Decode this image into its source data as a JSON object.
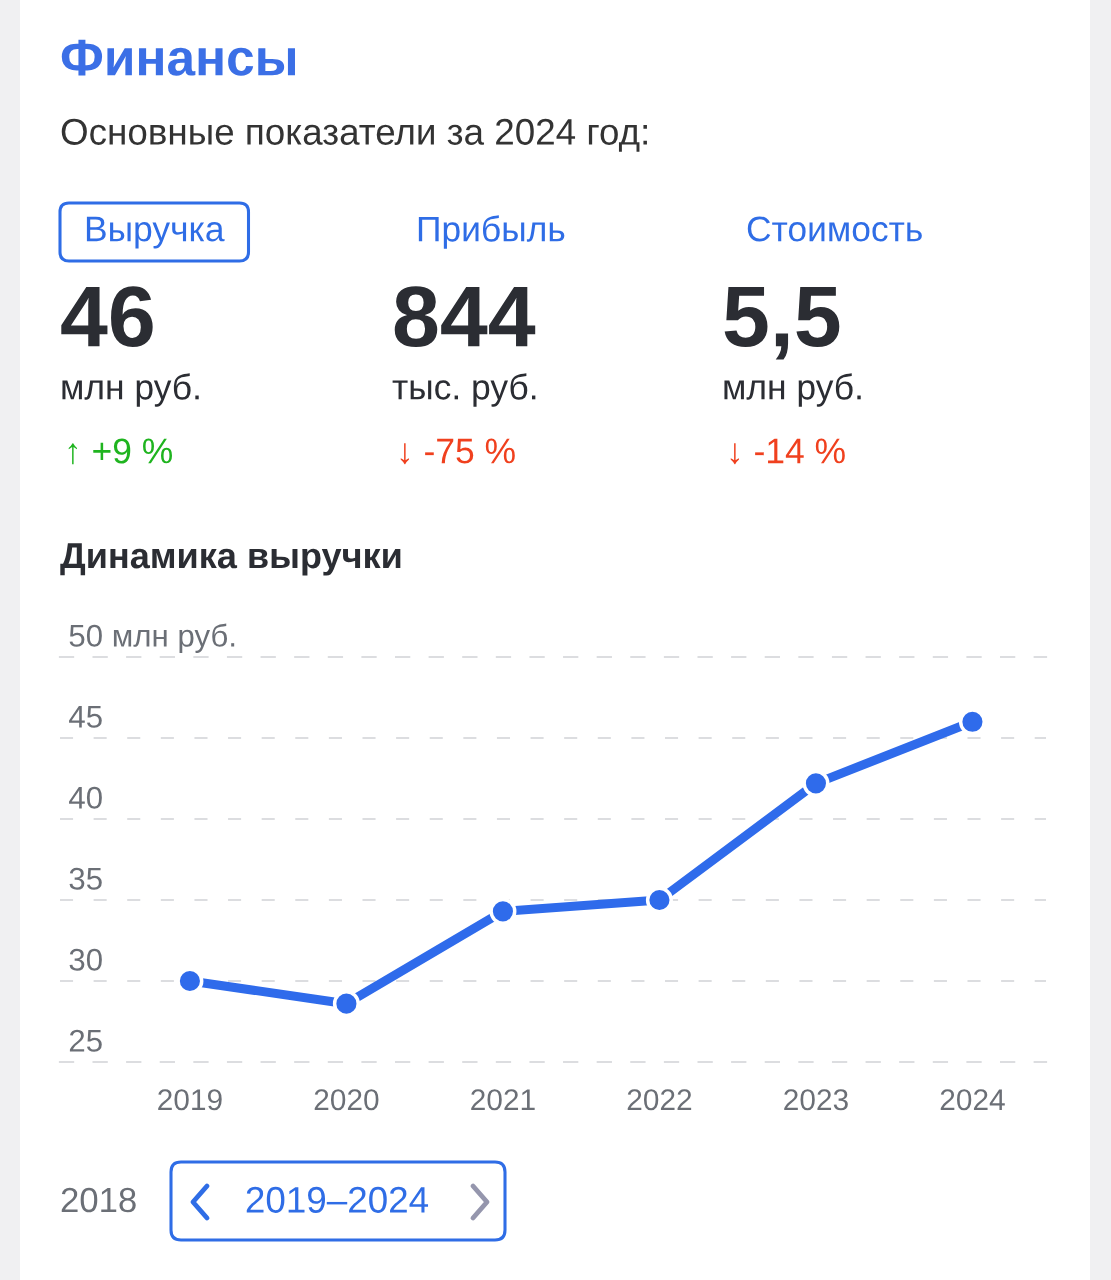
{
  "chart_data": [
    {
      "type": "other",
      "title": "Финансы",
      "subtitle": "Основные показатели за 2024 год:",
      "annotations": [
        "Выручка",
        "Прибыль",
        "Стоимость",
        "46",
        "844",
        "5,5",
        "млн руб.",
        "тыс. руб.",
        "млн руб.",
        "↑ +9 %",
        "↓ -75 %",
        "↓ -14 %"
      ],
      "colors": [
        "#2f6de6",
        "#2f6de6",
        "#2f6de6",
        "#2b2d33",
        "#2b2d33",
        "#2b2d33",
        "#2b2d33",
        "#2b2d33",
        "#2b2d33",
        "#1fb41f",
        "#f0401e",
        "#f0401e"
      ]
    },
    {
      "type": "line",
      "title": "Динамика выручки",
      "categories": [
        "2019",
        "2020",
        "2021",
        "2022",
        "2023",
        "2024"
      ],
      "series": [
        {
          "color": "#2f6beb",
          "values": [
            30.0,
            28.6,
            34.3,
            35.0,
            42.2,
            46
          ]
        }
      ],
      "ylim": [
        25,
        50
      ],
      "yticks": [
        25,
        30,
        35,
        40,
        45,
        {
          "value": 50,
          "label": "50 млн руб."
        }
      ],
      "grid": "y",
      "marker": "circle",
      "line_style": "solid",
      "annotations": [
        "2018",
        "2019–2024"
      ]
    }
  ]
}
